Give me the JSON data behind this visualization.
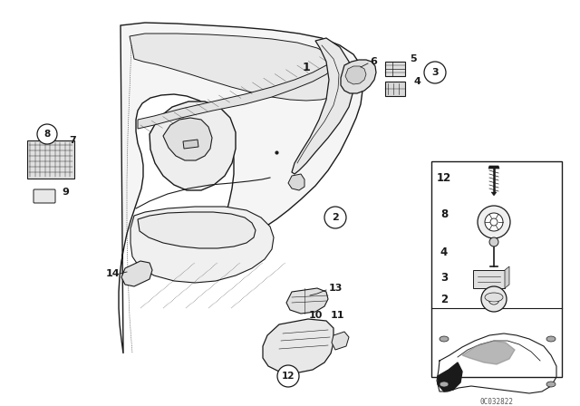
{
  "bg_color": "#ffffff",
  "line_color": "#1a1a1a",
  "part_code": "0C032822",
  "fig_w": 6.4,
  "fig_h": 4.48,
  "dpi": 100
}
